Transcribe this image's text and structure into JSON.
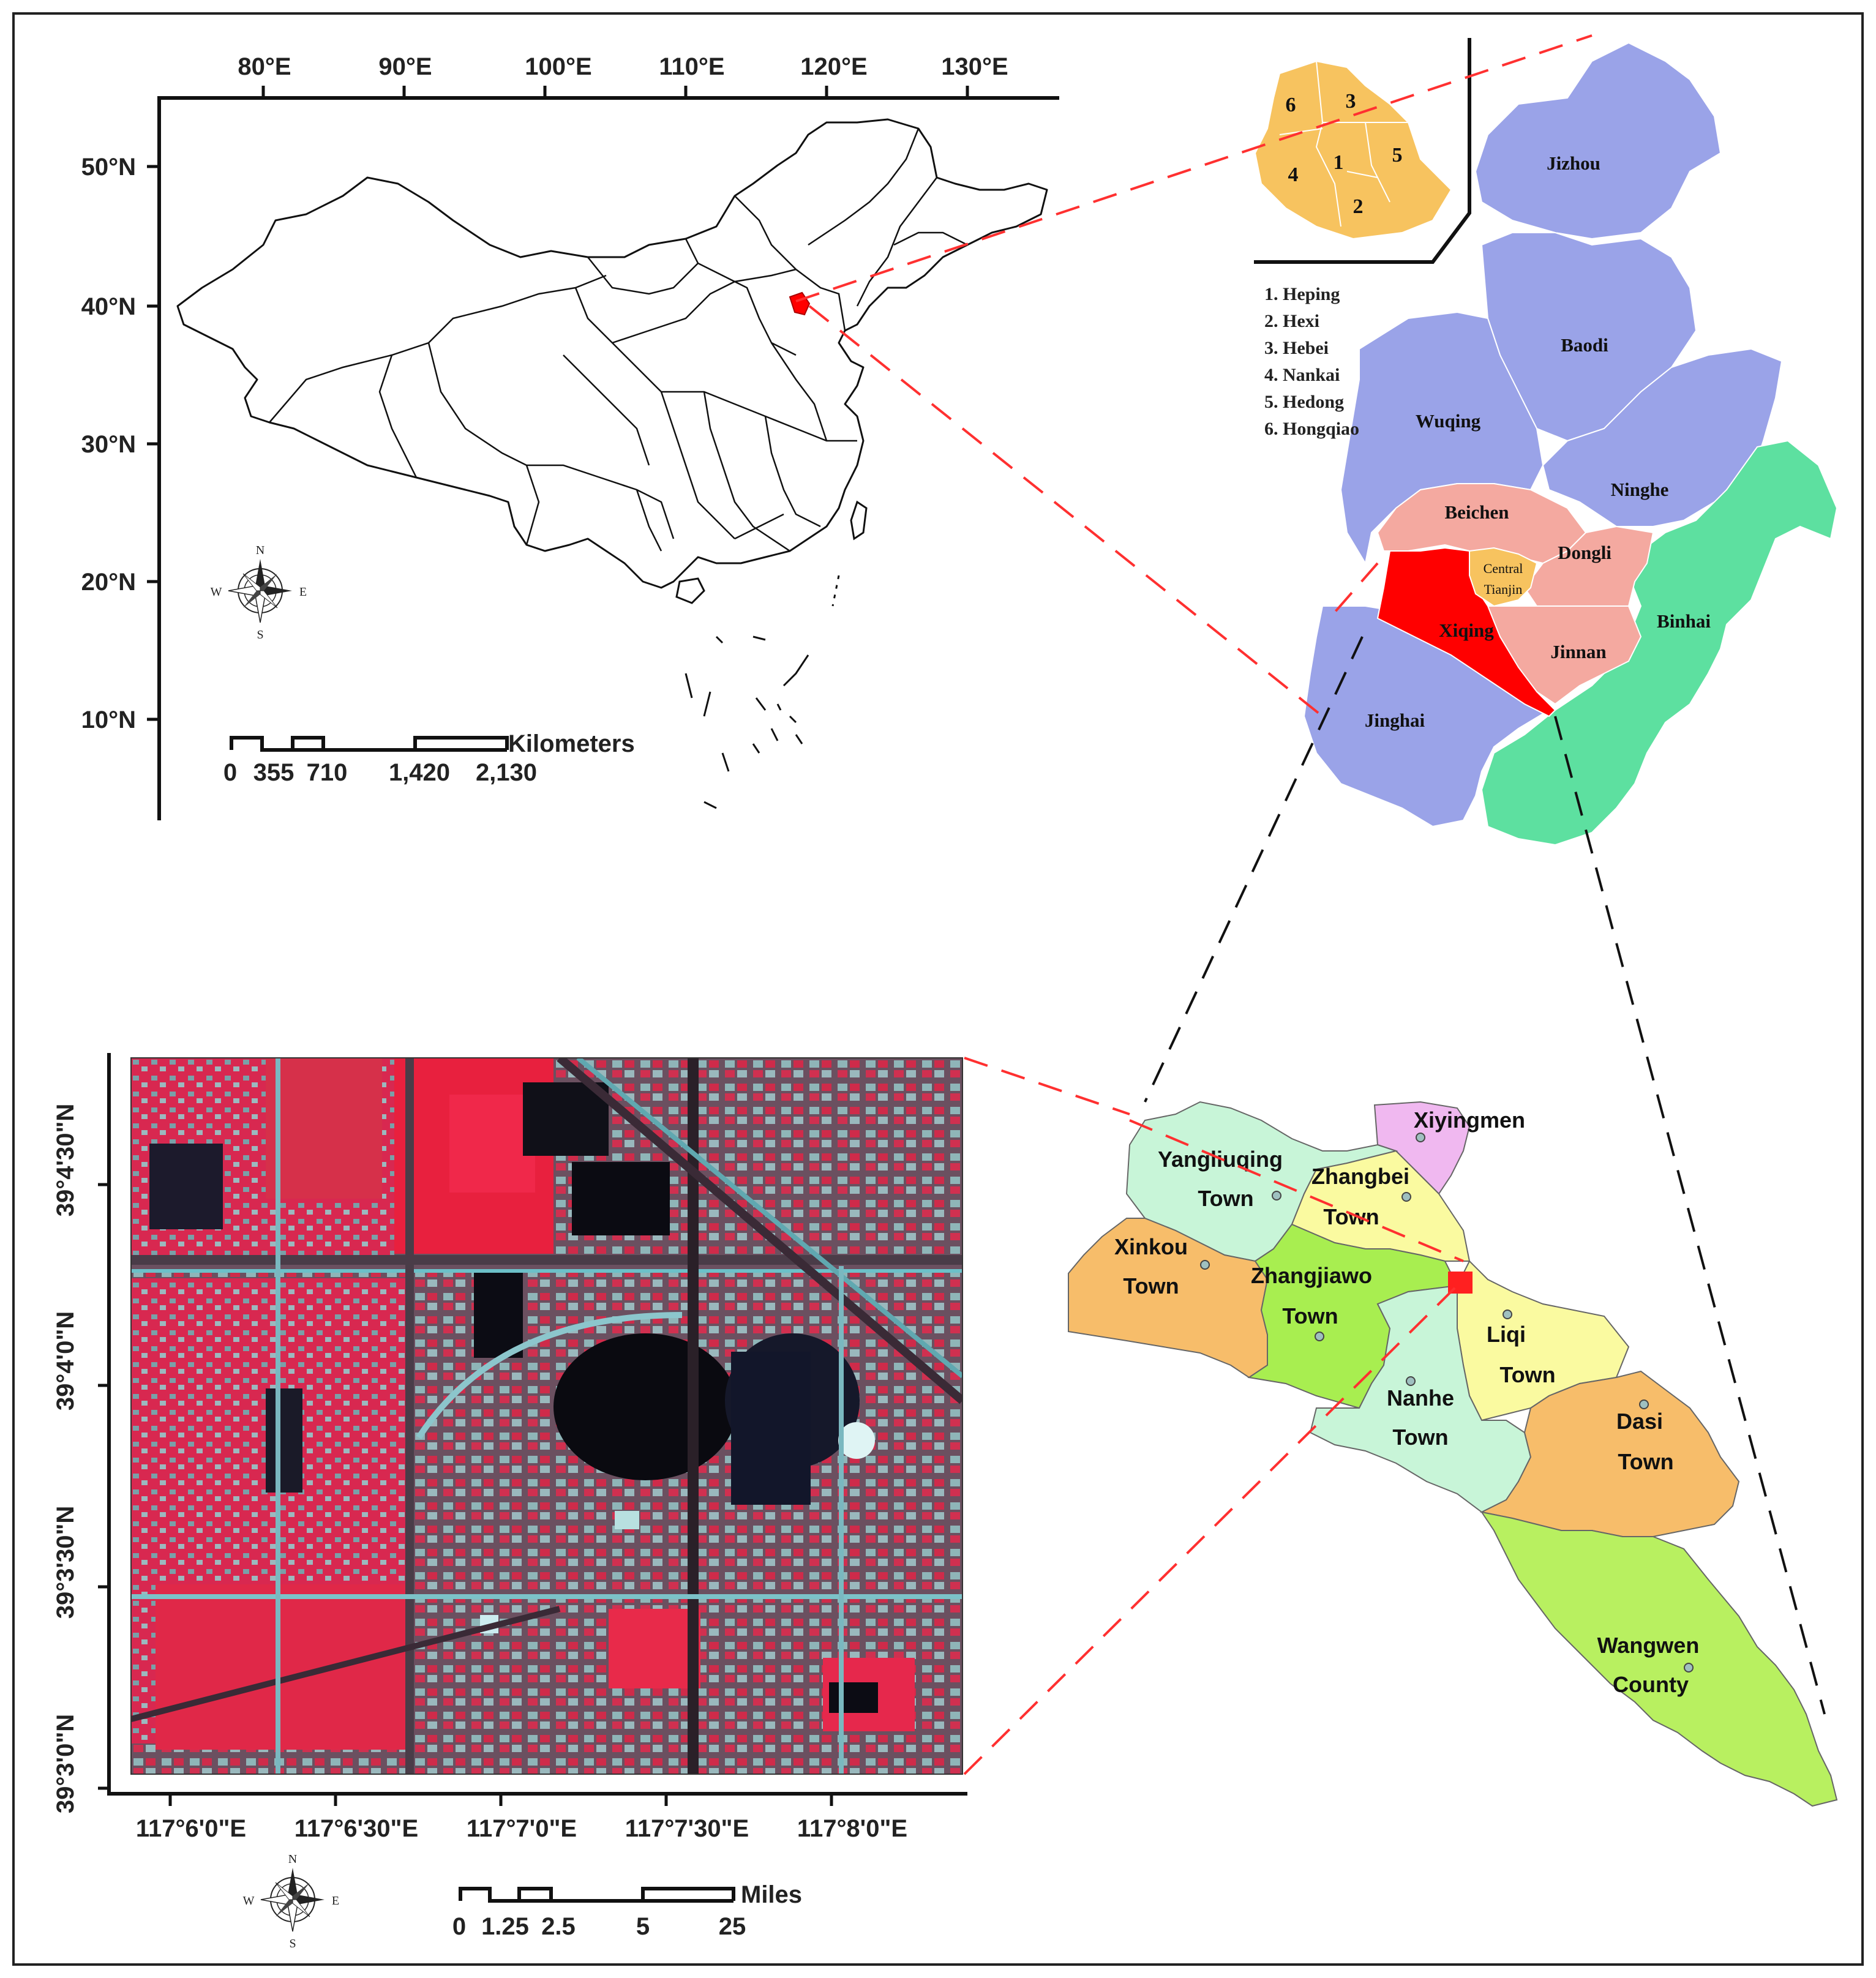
{
  "china_map": {
    "lon_ticks": [
      "80°E",
      "90°E",
      "100°E",
      "110°E",
      "120°E",
      "130°E"
    ],
    "lat_ticks": [
      "50°N",
      "40°N",
      "30°N",
      "20°N",
      "10°N"
    ],
    "scale": {
      "labels": [
        "0",
        "355",
        "710",
        "1,420",
        "2,130"
      ],
      "unit": "Kilometers"
    },
    "compass": {
      "n": "N",
      "s": "S",
      "e": "E",
      "w": "W"
    }
  },
  "tianjin_map": {
    "districts": [
      {
        "name": "Jizhou",
        "color": "#9aa3e8"
      },
      {
        "name": "Baodi",
        "color": "#9aa3e8"
      },
      {
        "name": "Wuqing",
        "color": "#9aa3e8"
      },
      {
        "name": "Ninghe",
        "color": "#9aa3e8"
      },
      {
        "name": "Beichen",
        "color": "#f4a9a0"
      },
      {
        "name": "Dongli",
        "color": "#f4a9a0"
      },
      {
        "name": "Central",
        "color": "#f7c35f"
      },
      {
        "name": "Tianjin",
        "color": "#f7c35f"
      },
      {
        "name": "Xiqing",
        "color": "#ff0000"
      },
      {
        "name": "Jinnan",
        "color": "#f4a9a0"
      },
      {
        "name": "Binhai",
        "color": "#5de0a0"
      },
      {
        "name": "Jinghai",
        "color": "#9aa3e8"
      }
    ],
    "inset_numbers": [
      "6",
      "3",
      "1",
      "5",
      "4",
      "2"
    ],
    "legend": [
      "1. Heping",
      "2. Hexi",
      "3. Hebei",
      "4. Nankai",
      "5. Hedong",
      "6. Hongqiao"
    ]
  },
  "satellite_map": {
    "lat_ticks": [
      "39°4'30\"N",
      "39°4'0\"N",
      "39°3'30\"N",
      "39°3'0\"N"
    ],
    "lon_ticks": [
      "117°6'0\"E",
      "117°6'30\"E",
      "117°7'0\"E",
      "117°7'30\"E",
      "117°8'0\"E"
    ],
    "scale": {
      "labels": [
        "0",
        "1.25",
        "2.5",
        "5",
        "25"
      ],
      "unit": "Miles"
    },
    "compass": {
      "n": "N",
      "s": "S",
      "e": "E",
      "w": "W"
    }
  },
  "xiqing_map": {
    "towns": [
      {
        "line1": "Xiyingmen",
        "line2": "",
        "color": "#f0b8f0"
      },
      {
        "line1": "Yangliuqing",
        "line2": "Town",
        "color": "#c8f5d8"
      },
      {
        "line1": "Zhangbei",
        "line2": "Town",
        "color": "#fafaa0"
      },
      {
        "line1": "Xinkou",
        "line2": "Town",
        "color": "#f7bd6a"
      },
      {
        "line1": "Zhangjiawo",
        "line2": "Town",
        "color": "#a8ee50"
      },
      {
        "line1": "Liqi",
        "line2": "Town",
        "color": "#fafaa0"
      },
      {
        "line1": "Nanhe",
        "line2": "Town",
        "color": "#c8f5d8"
      },
      {
        "line1": "Dasi",
        "line2": "Town",
        "color": "#f7bd6a"
      },
      {
        "line1": "Wangwen",
        "line2": "County",
        "color": "#b8f060"
      }
    ]
  },
  "colors": {
    "highlight_red": "#ff0000",
    "leader_red": "#ff3030",
    "leader_black": "#111111"
  }
}
